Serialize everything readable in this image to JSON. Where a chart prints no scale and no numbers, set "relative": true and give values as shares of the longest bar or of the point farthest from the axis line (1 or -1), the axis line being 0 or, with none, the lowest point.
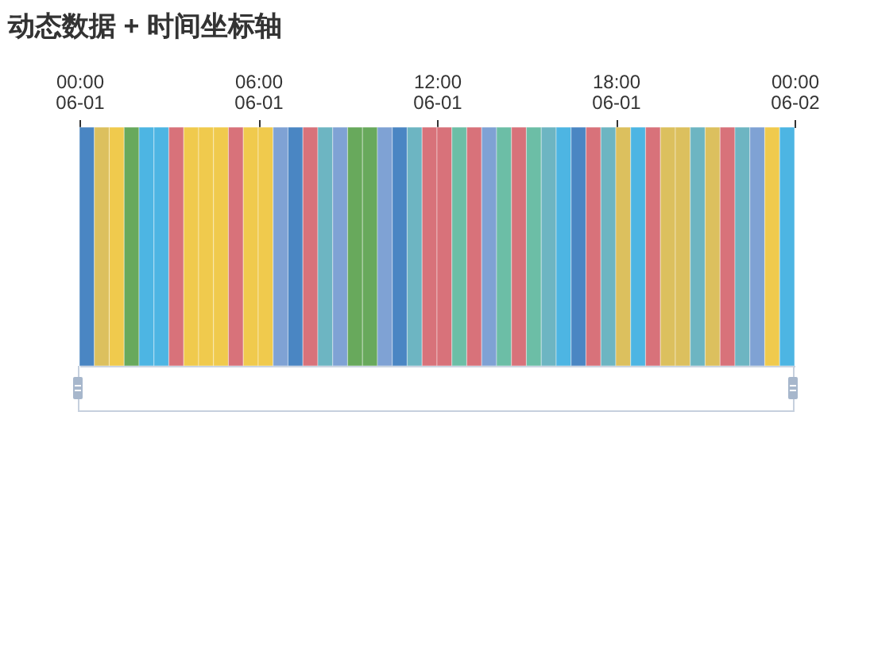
{
  "chart_data": {
    "type": "bar",
    "title": "动态数据 + 时间坐标轴",
    "relative": true,
    "x": [
      "--06-01T00:15",
      "--06-01T00:45",
      "--06-01T01:15",
      "--06-01T01:45",
      "--06-01T02:15",
      "--06-01T02:45",
      "--06-01T03:15",
      "--06-01T03:45",
      "--06-01T04:15",
      "--06-01T04:45",
      "--06-01T05:15",
      "--06-01T05:45",
      "--06-01T06:15",
      "--06-01T06:45",
      "--06-01T07:15",
      "--06-01T07:45",
      "--06-01T08:15",
      "--06-01T08:45",
      "--06-01T09:15",
      "--06-01T09:45",
      "--06-01T10:15",
      "--06-01T10:45",
      "--06-01T11:15",
      "--06-01T11:45",
      "--06-01T12:15",
      "--06-01T12:45",
      "--06-01T13:15",
      "--06-01T13:45",
      "--06-01T14:15",
      "--06-01T14:45",
      "--06-01T15:15",
      "--06-01T15:45",
      "--06-01T16:15",
      "--06-01T16:45",
      "--06-01T17:15",
      "--06-01T17:45",
      "--06-01T18:15",
      "--06-01T18:45",
      "--06-01T19:15",
      "--06-01T19:45",
      "--06-01T20:15",
      "--06-01T20:45",
      "--06-01T21:15",
      "--06-01T21:45",
      "--06-01T22:15",
      "--06-01T22:45",
      "--06-01T23:15",
      "--06-01T23:45"
    ],
    "values": [
      1,
      1,
      1,
      1,
      1,
      1,
      1,
      1,
      1,
      1,
      1,
      1,
      1,
      1,
      1,
      1,
      1,
      1,
      1,
      1,
      1,
      1,
      1,
      1,
      1,
      1,
      1,
      1,
      1,
      1,
      1,
      1,
      1,
      1,
      1,
      1,
      1,
      1,
      1,
      1,
      1,
      1,
      1,
      1,
      1,
      1,
      1,
      1
    ],
    "colors": [
      "#4a86c3",
      "#dcc05e",
      "#f0ca4d",
      "#68a95c",
      "#4db5e3",
      "#4db5e3",
      "#d8727a",
      "#f0ca4d",
      "#f0ca4d",
      "#f0ca4d",
      "#d8727a",
      "#f0ca4d",
      "#f0ca4d",
      "#7fa2d4",
      "#4a86c3",
      "#d8727a",
      "#6db5c2",
      "#7fa2d4",
      "#68a95c",
      "#68a95c",
      "#7fa2d4",
      "#4a86c3",
      "#6db5c2",
      "#d8727a",
      "#d8727a",
      "#6cbea6",
      "#d8727a",
      "#7fa2d4",
      "#6cbea6",
      "#d8727a",
      "#6cbea6",
      "#6db5c2",
      "#4db5e3",
      "#4a86c3",
      "#d8727a",
      "#6db5c2",
      "#dcc05e",
      "#4db5e3",
      "#d8727a",
      "#dcc05e",
      "#dcc05e",
      "#6db5c2",
      "#dcc05e",
      "#d8727a",
      "#6db5c2",
      "#7fa2d4",
      "#f0ca4d",
      "#4db5e3"
    ],
    "xlim": [
      "--06-01T00:00",
      "--06-02T00:00"
    ],
    "xticks": [
      {
        "value": "--06-01T00:00",
        "label": "00:00\n06-01"
      },
      {
        "value": "--06-01T06:00",
        "label": "06:00\n06-01"
      },
      {
        "value": "--06-01T12:00",
        "label": "12:00\n06-01"
      },
      {
        "value": "--06-01T18:00",
        "label": "18:00\n06-01"
      },
      {
        "value": "--06-02T00:00",
        "label": "00:00\n06-02"
      }
    ]
  }
}
